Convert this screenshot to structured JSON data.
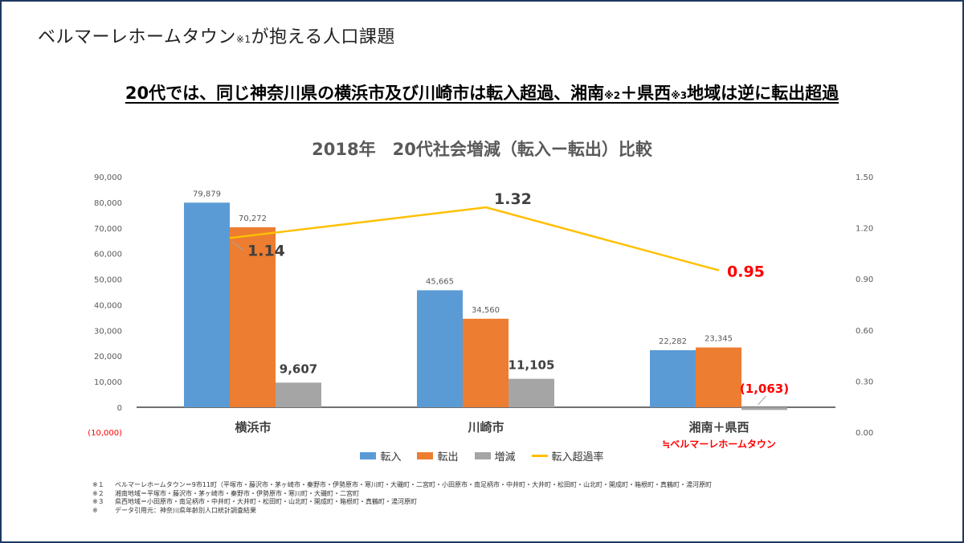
{
  "page": {
    "title": "ベルマーレホームタウン",
    "title_note": "※1",
    "title_suffix": "が抱える人口課題",
    "headline": {
      "part1": "20代では、同じ神奈川県の横浜市及び川崎市は転入超過、湘南",
      "note2": "※2",
      "part2": "＋県西",
      "note3": "※3",
      "part3": "地域は逆に転出超過"
    },
    "border_color": "#1f3864"
  },
  "chart_data": {
    "type": "bar",
    "title": "2018年　20代社会増減（転入ー転出）比較",
    "categories": [
      "横浜市",
      "川崎市",
      "湘南＋県西"
    ],
    "category_sublabel": {
      "index": 2,
      "text": "≒ベルマーレホームタウン",
      "color": "#ff0000"
    },
    "series": [
      {
        "name": "転入",
        "values": [
          79879,
          45665,
          22282
        ],
        "labels": [
          "79,879",
          "45,665",
          "22,282"
        ],
        "color": "#5b9bd5"
      },
      {
        "name": "転出",
        "values": [
          70272,
          34560,
          23345
        ],
        "labels": [
          "70,272",
          "34,560",
          "23,345"
        ],
        "color": "#ed7d31"
      },
      {
        "name": "増減",
        "values": [
          9607,
          11105,
          -1063
        ],
        "labels": [
          "9,607",
          "11,105",
          "(1,063)"
        ],
        "color": "#a5a5a5"
      }
    ],
    "line_series": {
      "name": "転入超過率",
      "values": [
        1.14,
        1.32,
        0.95
      ],
      "labels": [
        "1.14",
        "1.32",
        "0.95"
      ],
      "color": "#ffc000",
      "axis": "right"
    },
    "y_left": {
      "min": -10000,
      "max": 90000,
      "ticks": [
        90000,
        80000,
        70000,
        60000,
        50000,
        40000,
        30000,
        20000,
        10000,
        0
      ],
      "tick_labels": [
        "90,000",
        "80,000",
        "70,000",
        "60,000",
        "50,000",
        "40,000",
        "30,000",
        "20,000",
        "10,000",
        "0"
      ],
      "negative_label": "(10,000)"
    },
    "y_right": {
      "min": 0,
      "max": 1.5,
      "ticks": [
        1.5,
        1.2,
        0.9,
        0.6,
        0.3,
        0
      ],
      "tick_labels": [
        "1.50",
        "1.20",
        "0.90",
        "0.60",
        "0.30",
        "0.00"
      ]
    },
    "legend": {
      "position": "bottom",
      "items": [
        "転入",
        "転出",
        "増減",
        "転入超過率"
      ]
    },
    "highlight_color": "#ff0000"
  },
  "notes": [
    {
      "mark": "※１",
      "text": "ベルマーレホームタウン＝9市11町（平塚市・藤沢市・茅ヶ崎市・秦野市・伊勢原市・寒川町・大磯町・二宮町・小田原市・南足柄市・中井町・大井町・松田町・山北町・開成町・箱根町・真鶴町・湯河原町"
    },
    {
      "mark": "※２",
      "text": "湘南地域＝平塚市・藤沢市・茅ヶ崎市・秦野市・伊勢原市・寒川町・大磯町・二宮町"
    },
    {
      "mark": "※３",
      "text": "県西地域＝小田原市・南足柄市・中井町・大井町・松田町・山北町・開成町・箱根町・真鶴町・湯河原町"
    },
    {
      "mark": "※",
      "text": "データ引用元：神奈川県年齢別人口統計調査結果"
    }
  ]
}
